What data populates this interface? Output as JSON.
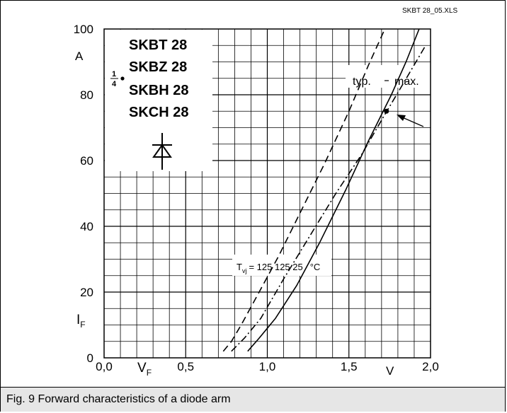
{
  "file_label": "SKBT 28_05.XLS",
  "caption": "Fig. 9 Forward characteristics of a diode arm",
  "fraction": {
    "numerator": "1",
    "denominator": "4"
  },
  "part_numbers": [
    "SKBT 28",
    "SKBZ 28",
    "SKBH 28",
    "SKCH 28"
  ],
  "annotations": {
    "typ": "typ.",
    "max": "max.",
    "tvj_base": "T",
    "tvj_sub": "vj",
    "tvj_values": "= 125 125 25",
    "tvj_unit": "°C"
  },
  "chart_data": {
    "type": "line",
    "title": "",
    "xlabel": "V",
    "xlabel_sub": "F",
    "xunit": "V",
    "ylabel": "I",
    "ylabel_sub": "F",
    "yunit": "A",
    "xlim": [
      0,
      2.0
    ],
    "ylim": [
      0,
      100
    ],
    "x_ticks": [
      "0,0",
      "0,5",
      "1,0",
      "1,5",
      "2,0"
    ],
    "y_ticks": [
      "0",
      "20",
      "40",
      "60",
      "80",
      "100"
    ],
    "grid": true,
    "series": [
      {
        "style": "dash",
        "x": [
          0.73,
          0.78,
          0.84,
          0.95,
          1.07,
          1.2,
          1.35,
          1.5,
          1.62,
          1.72
        ],
        "y": [
          2,
          5,
          10,
          20,
          31,
          44,
          59,
          75,
          89,
          100
        ]
      },
      {
        "style": "dashdot",
        "x": [
          0.78,
          0.86,
          0.96,
          1.1,
          1.26,
          1.42,
          1.58,
          1.72,
          1.84,
          1.97
        ],
        "y": [
          2,
          6,
          12,
          24,
          37,
          50,
          62,
          74,
          84,
          95
        ]
      },
      {
        "style": "solid",
        "x": [
          0.88,
          0.95,
          1.05,
          1.18,
          1.32,
          1.48,
          1.62,
          1.76,
          1.85,
          1.93
        ],
        "y": [
          2,
          6,
          12,
          22,
          35,
          51,
          66,
          80,
          90,
          100
        ]
      }
    ],
    "marker": {
      "x": 1.73,
      "y": 75
    }
  }
}
